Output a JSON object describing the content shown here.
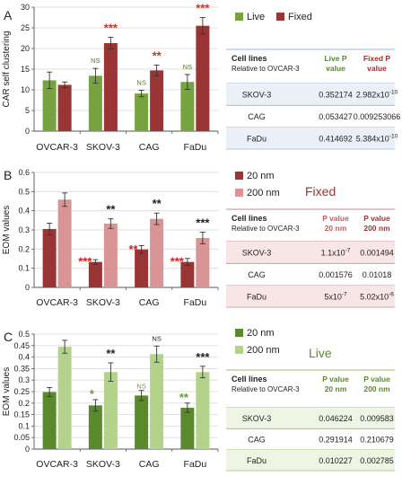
{
  "panels": [
    {
      "letter": "A",
      "chart_data": {
        "type": "bar",
        "categories": [
          "OVCAR-3",
          "SKOV-3",
          "CAG",
          "FaDu"
        ],
        "ylabel": "CAR self clustering",
        "ylim": [
          0,
          30
        ],
        "yticks": [
          "0",
          "5",
          "10",
          "15",
          "20",
          "25",
          "30"
        ],
        "grid": true,
        "legend": "top-right",
        "series": [
          {
            "name": "Live",
            "color": "#77a33e",
            "values": [
              12.3,
              13.4,
              9.1,
              11.9
            ],
            "errors": [
              2.0,
              1.8,
              0.8,
              1.8
            ],
            "sig": [
              "",
              "NS",
              "NS",
              "NS"
            ],
            "sig_color": "#4f7a26"
          },
          {
            "name": "Fixed",
            "color": "#9b3434",
            "values": [
              11.2,
              21.3,
              14.7,
              25.5
            ],
            "errors": [
              0.7,
              1.4,
              1.3,
              2.0
            ],
            "sig": [
              "",
              "***",
              "**",
              "***"
            ],
            "sig_color": "#c0392b"
          }
        ]
      },
      "table": {
        "header": [
          "Cell lines",
          "Relative to OVCAR-3",
          "Live P value",
          "Fixed P value"
        ],
        "rows": [
          [
            "SKOV-3",
            "0.352174",
            "2.982x10-10"
          ],
          [
            "CAG",
            "0.053427",
            "0.009253066"
          ],
          [
            "FaDu",
            "0.414692",
            "5.384x10-10"
          ]
        ]
      }
    },
    {
      "letter": "B",
      "title": "Fixed",
      "chart_data": {
        "type": "bar",
        "categories": [
          "OVCAR-3",
          "SKOV-3",
          "CAG",
          "FaDu"
        ],
        "ylabel": "EOM values",
        "ylim": [
          0,
          0.6
        ],
        "yticks": [
          "0",
          "0.1",
          "0.2",
          "0.3",
          "0.4",
          "0.5",
          "0.6"
        ],
        "grid": true,
        "legend": "right",
        "series": [
          {
            "name": "20 nm",
            "color": "#9b3434",
            "values": [
              0.305,
              0.133,
              0.198,
              0.133
            ],
            "errors": [
              0.03,
              0.012,
              0.02,
              0.018
            ],
            "sig": [
              "",
              "***",
              "**",
              "***"
            ],
            "sig_color": "#d62020"
          },
          {
            "name": "200 nm",
            "color": "#d99595",
            "values": [
              0.458,
              0.333,
              0.358,
              0.258
            ],
            "errors": [
              0.035,
              0.025,
              0.03,
              0.03
            ],
            "sig": [
              "",
              "**",
              "**",
              "***"
            ],
            "sig_color": "#222222"
          }
        ]
      },
      "table": {
        "header": [
          "Cell lines",
          "Relative to OVCAR-3",
          "P value 20 nm",
          "P value 200 nm"
        ],
        "rows": [
          [
            "SKOV-3",
            "1.1x10-7",
            "0.001494"
          ],
          [
            "CAG",
            "0.001576",
            "0.01018"
          ],
          [
            "FaDu",
            "5x10-7",
            "5.02x10-6"
          ]
        ]
      }
    },
    {
      "letter": "C",
      "title": "Live",
      "chart_data": {
        "type": "bar",
        "categories": [
          "OVCAR-3",
          "SKOV-3",
          "CAG",
          "FaDu"
        ],
        "ylabel": "EOM values",
        "ylim": [
          0,
          0.5
        ],
        "yticks": [
          "0",
          "0.05",
          "0.1",
          "0.15",
          "0.2",
          "0.25",
          "0.3",
          "0.35",
          "0.4",
          "0.45",
          "0.5"
        ],
        "grid": true,
        "legend": "top",
        "series": [
          {
            "name": "20 nm",
            "color": "#5b8a2e",
            "values": [
              0.248,
              0.19,
              0.233,
              0.18
            ],
            "errors": [
              0.02,
              0.025,
              0.022,
              0.02
            ],
            "sig": [
              "",
              "*",
              "NS",
              "**"
            ],
            "sig_color": "#6a9a30"
          },
          {
            "name": "200 nm",
            "color": "#b3d38a",
            "values": [
              0.445,
              0.335,
              0.413,
              0.335
            ],
            "errors": [
              0.028,
              0.04,
              0.035,
              0.025
            ],
            "sig": [
              "",
              "**",
              "NS",
              "***"
            ],
            "sig_color": "#222222"
          }
        ]
      },
      "table": {
        "header": [
          "Cell lines",
          "Relative to OVCAR-3",
          "P value 20 nm",
          "P value 200 nm"
        ],
        "rows": [
          [
            "SKOV-3",
            "0.046224",
            "0.009583"
          ],
          [
            "CAG",
            "0.291914",
            "0.210679"
          ],
          [
            "FaDu",
            "0.010227",
            "0.002785"
          ]
        ]
      }
    }
  ]
}
